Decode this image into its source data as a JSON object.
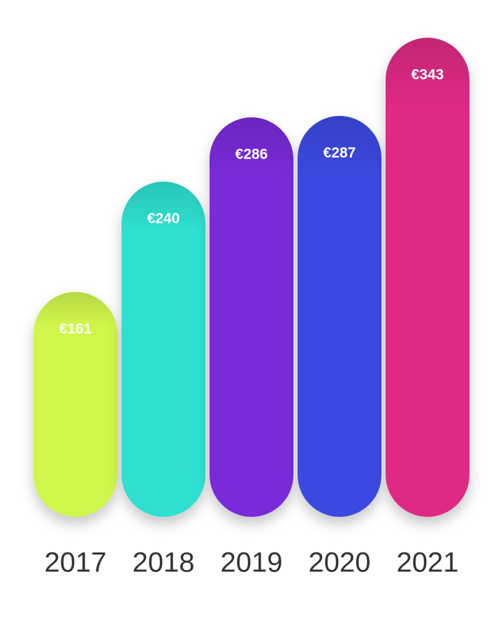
{
  "chart_data": {
    "type": "bar",
    "categories": [
      "2017",
      "2018",
      "2019",
      "2020",
      "2021"
    ],
    "values": [
      161,
      240,
      286,
      287,
      343
    ],
    "value_labels": [
      "€161",
      "€240",
      "€286",
      "€287",
      "€343"
    ],
    "colors": [
      "#cff64c",
      "#2ee0d0",
      "#7a2ad8",
      "#3a48e0",
      "#de2a84"
    ]
  }
}
